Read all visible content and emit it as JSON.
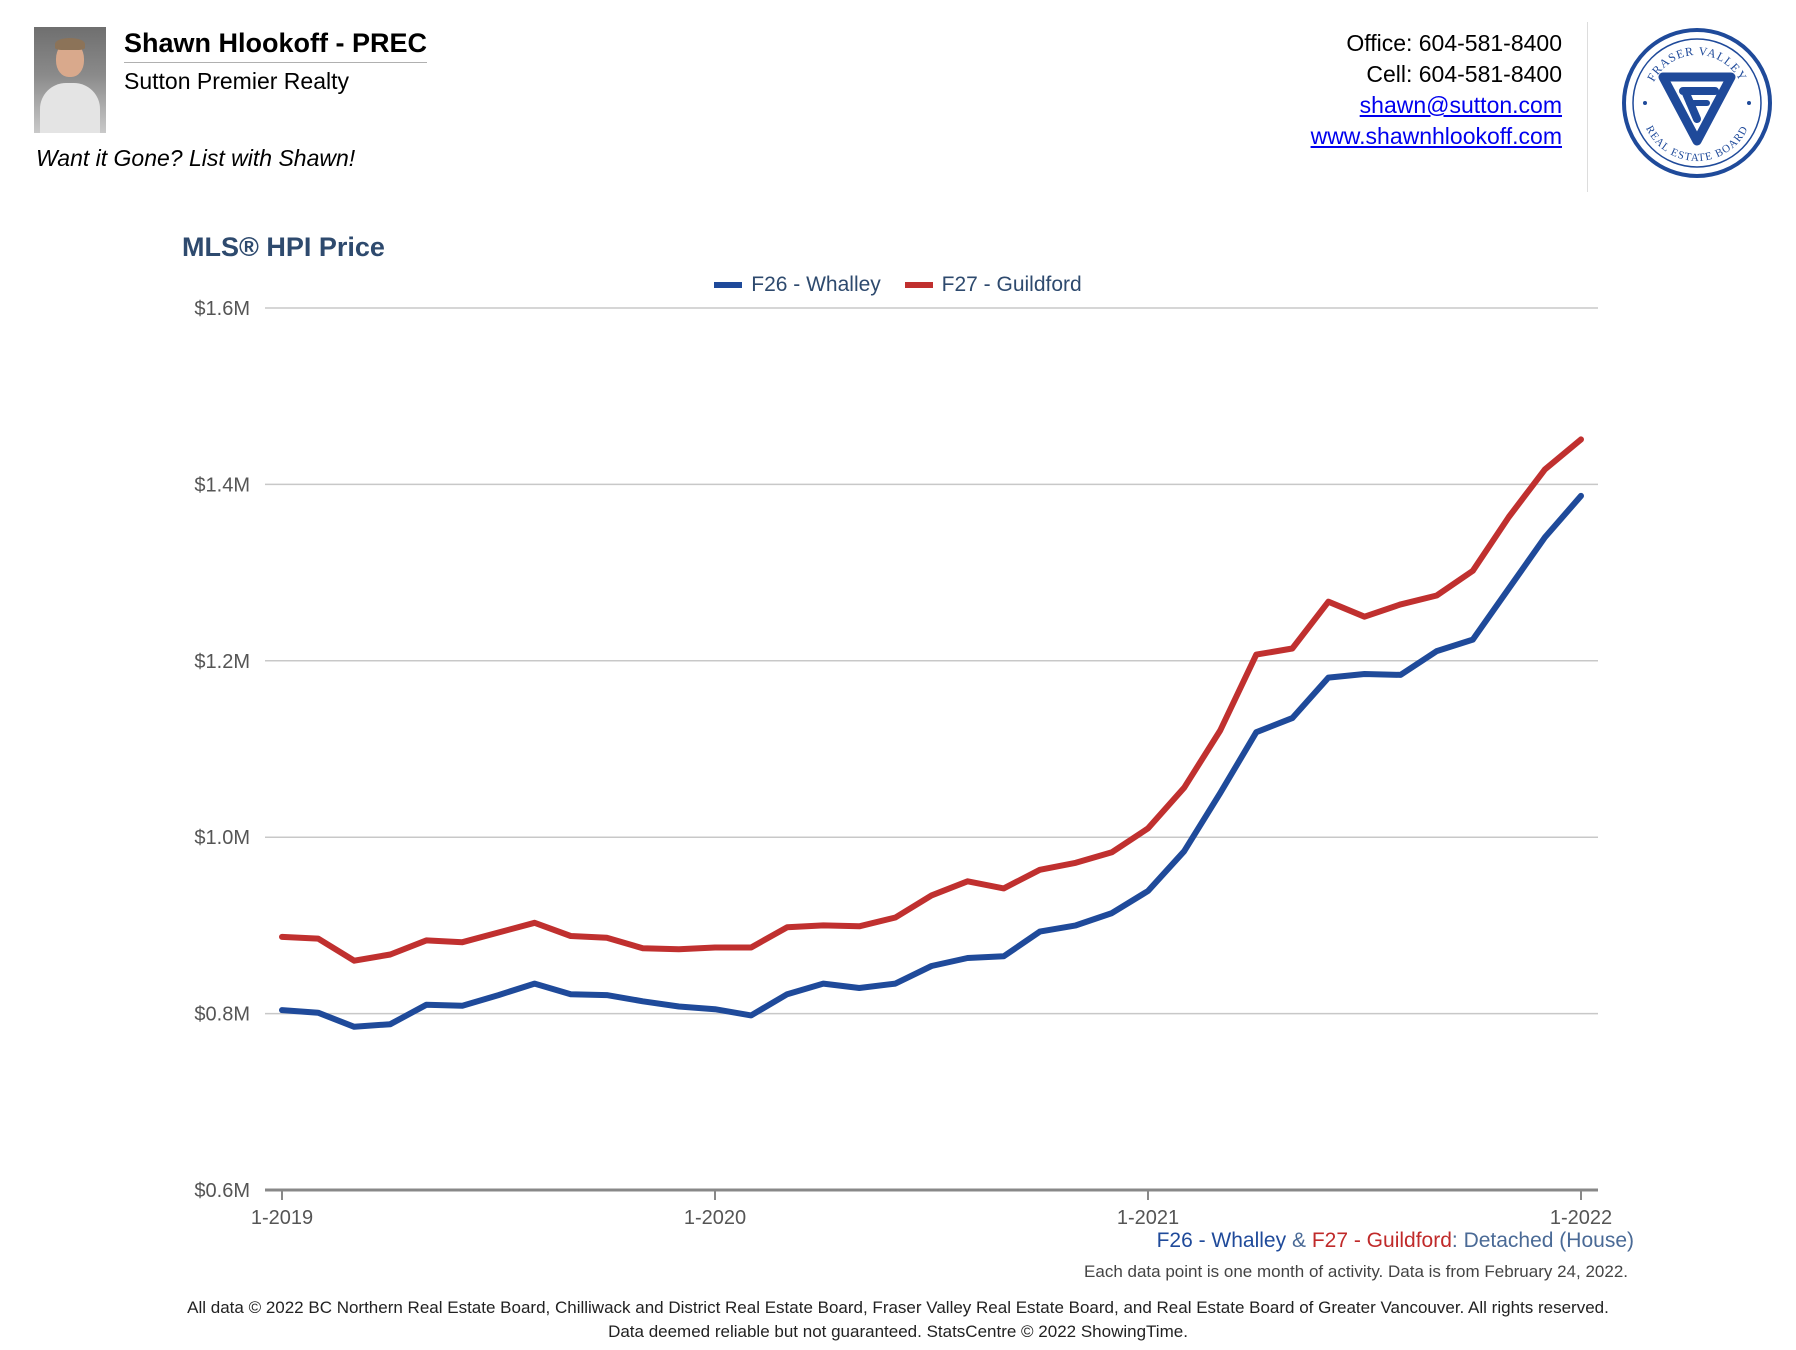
{
  "header": {
    "agent_name": "Shawn Hlookoff - PREC",
    "agent_company": "Sutton Premier Realty",
    "tagline": "Want it Gone? List with Shawn!",
    "office": "Office: 604-581-8400",
    "cell": "Cell: 604-581-8400",
    "email": "shawn@sutton.com",
    "website": "www.shawnhlookoff.com",
    "logo": {
      "text_top": "FRASER VALLEY",
      "text_bottom": "REAL ESTATE BOARD",
      "color": "#1f4a9a"
    }
  },
  "chart_subtitle": {
    "series1": "F26 - Whalley",
    "amp": "&",
    "series2": "F27 - Guildford",
    "colon": ":",
    "type": "Detached (House)"
  },
  "note": "Each data point is one month of activity. Data is from February 24, 2022.",
  "footer": {
    "line1": "All data © 2022 BC Northern Real Estate Board, Chilliwack and District Real Estate Board, Fraser Valley Real Estate Board, and Real Estate Board of Greater Vancouver. All rights reserved.",
    "line2": "Data deemed reliable but not guaranteed. StatsCentre © 2022 ShowingTime."
  },
  "chart_data": {
    "type": "line",
    "title": "MLS® HPI Price",
    "xlabel": "",
    "ylabel": "",
    "x_ticks": [
      "1-2019",
      "1-2020",
      "1-2021",
      "1-2022"
    ],
    "y_ticks": [
      "$0.6M",
      "$0.8M",
      "$1.0M",
      "$1.2M",
      "$1.4M",
      "$1.6M"
    ],
    "ylim": [
      0.6,
      1.6
    ],
    "y_unit": "$M",
    "grid": true,
    "legend_position": "top-center",
    "x": [
      "1-2019",
      "2-2019",
      "3-2019",
      "4-2019",
      "5-2019",
      "6-2019",
      "7-2019",
      "8-2019",
      "9-2019",
      "10-2019",
      "11-2019",
      "12-2019",
      "1-2020",
      "2-2020",
      "3-2020",
      "4-2020",
      "5-2020",
      "6-2020",
      "7-2020",
      "8-2020",
      "9-2020",
      "10-2020",
      "11-2020",
      "12-2020",
      "1-2021",
      "2-2021",
      "3-2021",
      "4-2021",
      "5-2021",
      "6-2021",
      "7-2021",
      "8-2021",
      "9-2021",
      "10-2021",
      "11-2021",
      "12-2021",
      "1-2022"
    ],
    "series": [
      {
        "name": "F26 - Whalley",
        "color": "#1f4a9a",
        "values": [
          0.804,
          0.801,
          0.785,
          0.788,
          0.81,
          0.809,
          0.821,
          0.834,
          0.822,
          0.821,
          0.814,
          0.808,
          0.805,
          0.798,
          0.822,
          0.834,
          0.829,
          0.834,
          0.854,
          0.863,
          0.865,
          0.893,
          0.9,
          0.914,
          0.939,
          0.984,
          1.05,
          1.119,
          1.135,
          1.181,
          1.185,
          1.184,
          1.211,
          1.224,
          1.282,
          1.34,
          1.387
        ]
      },
      {
        "name": "F27 - Guildford",
        "color": "#c0302f",
        "values": [
          0.887,
          0.885,
          0.86,
          0.867,
          0.883,
          0.881,
          0.892,
          0.903,
          0.888,
          0.886,
          0.874,
          0.873,
          0.875,
          0.875,
          0.898,
          0.9,
          0.899,
          0.909,
          0.934,
          0.95,
          0.942,
          0.963,
          0.971,
          0.983,
          1.01,
          1.056,
          1.121,
          1.207,
          1.214,
          1.267,
          1.25,
          1.264,
          1.274,
          1.302,
          1.363,
          1.417,
          1.451
        ]
      }
    ]
  }
}
